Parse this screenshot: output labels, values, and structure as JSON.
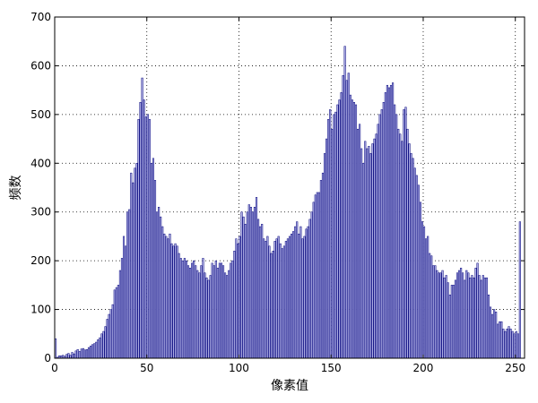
{
  "chart_data": {
    "type": "bar",
    "title": "",
    "xlabel": "像素值",
    "ylabel": "频数",
    "xlim": [
      0,
      255
    ],
    "ylim": [
      0,
      700
    ],
    "xticks": [
      0,
      50,
      100,
      150,
      200,
      250
    ],
    "yticks": [
      0,
      100,
      200,
      300,
      400,
      500,
      600,
      700
    ],
    "grid": true,
    "bar_fill": "#b0b0e6",
    "bar_edge": "#00007a",
    "series": [
      {
        "values": [
          40,
          2,
          5,
          5,
          6,
          4,
          8,
          10,
          6,
          12,
          9,
          15,
          18,
          14,
          19,
          20,
          17,
          18,
          22,
          25,
          28,
          30,
          33,
          38,
          42,
          50,
          55,
          65,
          80,
          90,
          100,
          110,
          140,
          145,
          150,
          180,
          205,
          250,
          230,
          300,
          305,
          380,
          360,
          390,
          400,
          490,
          525,
          575,
          530,
          495,
          500,
          490,
          400,
          410,
          365,
          300,
          310,
          290,
          270,
          255,
          250,
          245,
          255,
          235,
          230,
          235,
          230,
          215,
          205,
          200,
          205,
          200,
          190,
          185,
          195,
          200,
          190,
          180,
          175,
          190,
          205,
          175,
          165,
          160,
          170,
          195,
          190,
          200,
          185,
          195,
          195,
          190,
          175,
          170,
          180,
          195,
          200,
          220,
          245,
          235,
          250,
          300,
          290,
          275,
          300,
          315,
          310,
          300,
          310,
          330,
          285,
          270,
          275,
          245,
          240,
          250,
          230,
          215,
          220,
          240,
          245,
          250,
          235,
          225,
          230,
          240,
          245,
          250,
          255,
          260,
          270,
          280,
          255,
          270,
          245,
          250,
          265,
          270,
          285,
          300,
          320,
          335,
          340,
          340,
          365,
          380,
          420,
          450,
          490,
          510,
          470,
          500,
          505,
          520,
          530,
          545,
          580,
          640,
          570,
          585,
          540,
          530,
          525,
          520,
          470,
          480,
          430,
          400,
          445,
          430,
          435,
          420,
          440,
          450,
          460,
          480,
          500,
          510,
          525,
          545,
          560,
          555,
          560,
          565,
          520,
          500,
          470,
          460,
          445,
          510,
          515,
          470,
          440,
          420,
          410,
          390,
          375,
          355,
          320,
          280,
          270,
          245,
          250,
          215,
          210,
          190,
          190,
          180,
          175,
          175,
          180,
          165,
          170,
          155,
          130,
          150,
          150,
          160,
          175,
          180,
          185,
          175,
          160,
          180,
          175,
          165,
          170,
          165,
          185,
          195,
          170,
          160,
          170,
          165,
          165,
          130,
          105,
          90,
          100,
          95,
          70,
          75,
          75,
          60,
          55,
          60,
          65,
          60,
          55,
          50,
          55,
          50,
          280
        ]
      }
    ]
  }
}
